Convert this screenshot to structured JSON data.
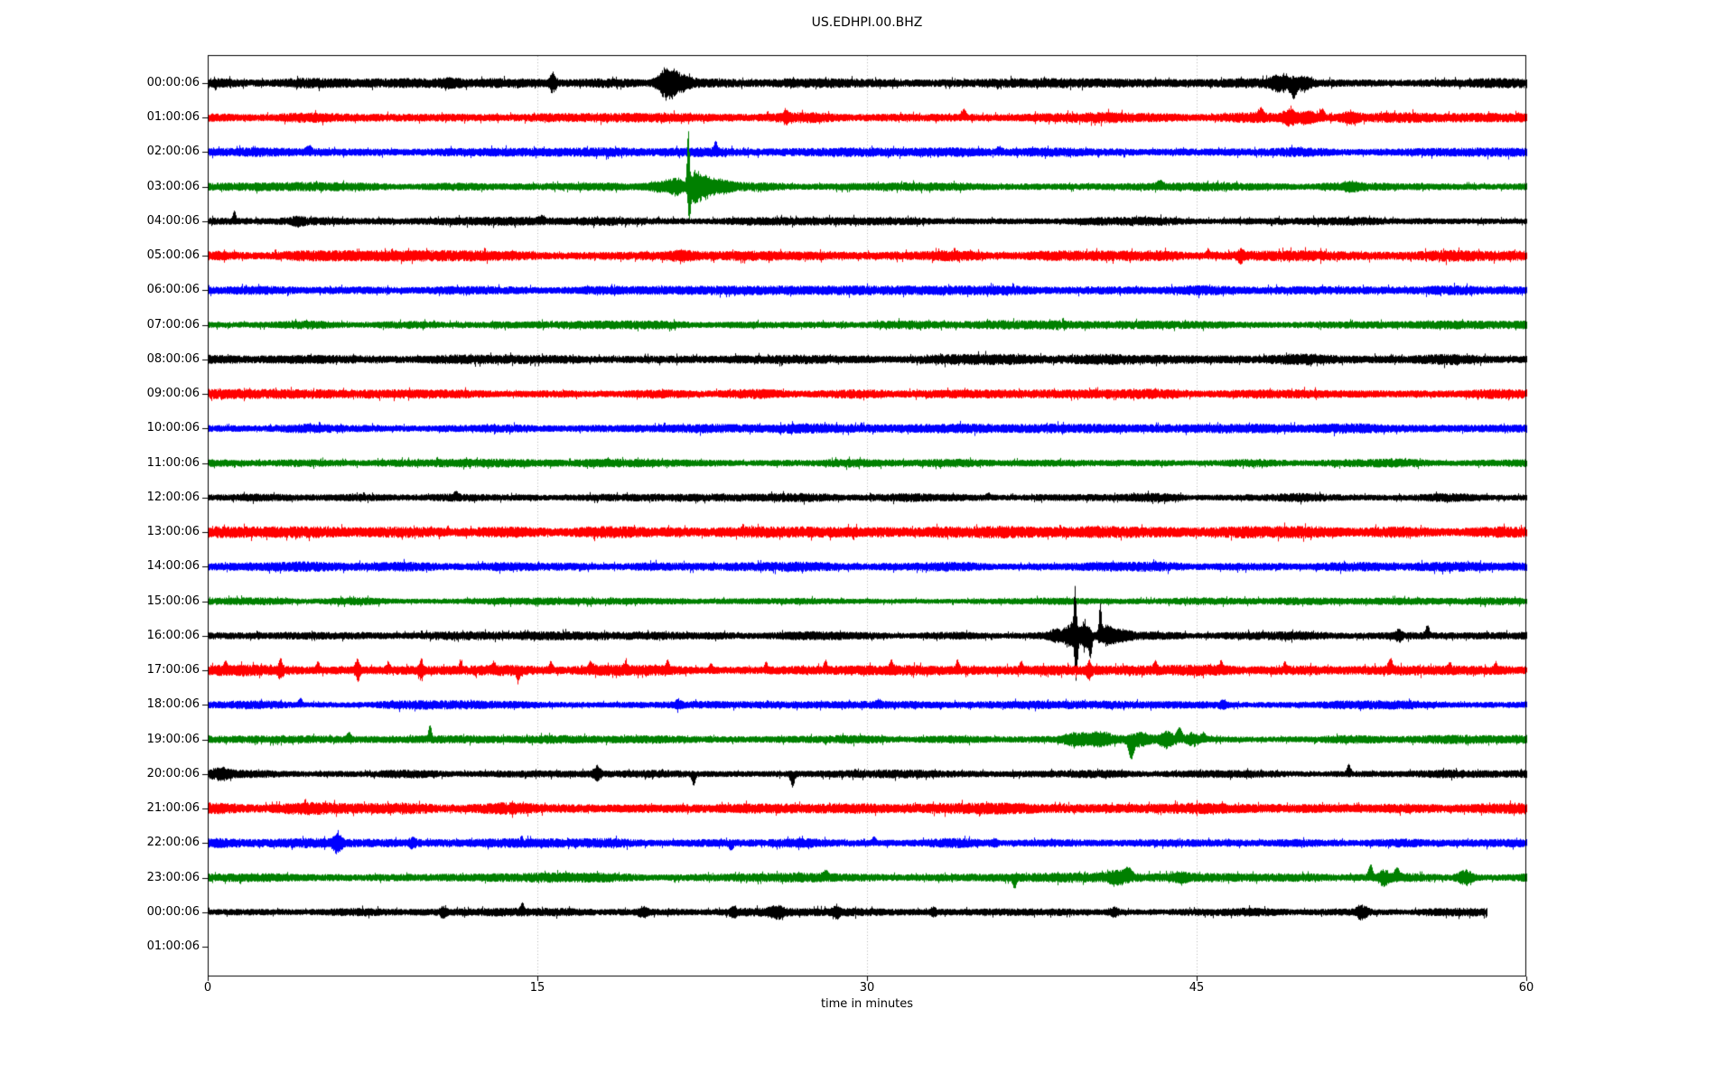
{
  "chart_data": {
    "type": "line",
    "title": "US.EDHPI.00.BHZ",
    "xlabel": "time in minutes",
    "xlim": [
      0,
      60
    ],
    "x_ticks": [
      0,
      15,
      30,
      45,
      60
    ],
    "grid_minutes": [
      15,
      30,
      45
    ],
    "grid_color": "#b0b0b0",
    "frame_color": "#000000",
    "color_cycle": [
      "#000000",
      "#ff0000",
      "#0000ff",
      "#008000"
    ],
    "rows": [
      {
        "label": "00:00:06",
        "color": "#000000",
        "start": 0,
        "end": 60,
        "noise": 4.5,
        "ev": [
          [
            11.0,
            3,
            0.3,
            0
          ],
          [
            15.7,
            9,
            0.12,
            0
          ],
          [
            20.9,
            12,
            0.3,
            0
          ],
          [
            21.3,
            7,
            0.5,
            0
          ],
          [
            48.9,
            7,
            0.4,
            0
          ],
          [
            49.4,
            11,
            0.1,
            -1
          ],
          [
            49.9,
            6,
            0.2,
            0
          ]
        ]
      },
      {
        "label": "01:00:06",
        "color": "#ff0000",
        "start": 0,
        "end": 60,
        "noise": 5.0,
        "ev": [
          [
            26.3,
            4,
            0.1,
            0
          ],
          [
            34.4,
            6,
            0.07,
            1
          ],
          [
            47.9,
            6,
            0.1,
            1
          ],
          [
            49.2,
            8,
            0.2,
            0
          ],
          [
            50.0,
            5,
            0.3,
            0
          ],
          [
            50.7,
            6,
            0.08,
            1
          ],
          [
            52.0,
            4,
            0.3,
            0
          ]
        ]
      },
      {
        "label": "02:00:06",
        "color": "#0000ff",
        "start": 0,
        "end": 60,
        "noise": 4.5,
        "ev": [
          [
            4.6,
            4,
            0.1,
            1
          ],
          [
            23.1,
            8,
            0.07,
            1
          ],
          [
            36.0,
            3,
            0.1,
            1
          ]
        ]
      },
      {
        "label": "03:00:06",
        "color": "#008000",
        "start": 0,
        "end": 60,
        "noise": 4.0,
        "ev": [
          [
            20.6,
            4,
            0.5,
            0
          ],
          [
            21.3,
            7,
            0.25,
            0
          ],
          [
            21.85,
            56,
            0.05,
            1
          ],
          [
            21.9,
            30,
            0.06,
            -1
          ],
          [
            22.15,
            13,
            0.15,
            0
          ],
          [
            22.5,
            8,
            0.3,
            0
          ],
          [
            23.2,
            5,
            0.5,
            0
          ],
          [
            43.3,
            4,
            0.12,
            1
          ],
          [
            52.0,
            3,
            0.2,
            0
          ]
        ]
      },
      {
        "label": "04:00:06",
        "color": "#000000",
        "start": 0,
        "end": 60,
        "noise": 4.0,
        "ev": [
          [
            1.2,
            8,
            0.06,
            1
          ],
          [
            4.1,
            3,
            0.2,
            0
          ],
          [
            15.2,
            3,
            0.12,
            1
          ]
        ]
      },
      {
        "label": "05:00:06",
        "color": "#ff0000",
        "start": 0,
        "end": 60,
        "noise": 5.0,
        "ev": [
          [
            21.5,
            3,
            0.4,
            0
          ],
          [
            45.5,
            5,
            0.06,
            1
          ],
          [
            47.0,
            6,
            0.1,
            0
          ]
        ]
      },
      {
        "label": "06:00:06",
        "color": "#0000ff",
        "start": 0,
        "end": 60,
        "noise": 4.5,
        "ev": []
      },
      {
        "label": "07:00:06",
        "color": "#008000",
        "start": 0,
        "end": 60,
        "noise": 4.0,
        "ev": []
      },
      {
        "label": "08:00:06",
        "color": "#000000",
        "start": 0,
        "end": 60,
        "noise": 5.0,
        "ev": []
      },
      {
        "label": "09:00:06",
        "color": "#ff0000",
        "start": 0,
        "end": 60,
        "noise": 4.5,
        "ev": []
      },
      {
        "label": "10:00:06",
        "color": "#0000ff",
        "start": 0,
        "end": 60,
        "noise": 4.5,
        "ev": []
      },
      {
        "label": "11:00:06",
        "color": "#008000",
        "start": 0,
        "end": 60,
        "noise": 4.0,
        "ev": []
      },
      {
        "label": "12:00:06",
        "color": "#000000",
        "start": 0,
        "end": 60,
        "noise": 4.0,
        "ev": [
          [
            11.3,
            4,
            0.08,
            1
          ],
          [
            35.5,
            3,
            0.08,
            1
          ]
        ]
      },
      {
        "label": "13:00:06",
        "color": "#ff0000",
        "start": 0,
        "end": 60,
        "noise": 5.5,
        "ev": []
      },
      {
        "label": "14:00:06",
        "color": "#0000ff",
        "start": 0,
        "end": 60,
        "noise": 4.5,
        "ev": []
      },
      {
        "label": "15:00:06",
        "color": "#008000",
        "start": 0,
        "end": 60,
        "noise": 3.5,
        "ev": []
      },
      {
        "label": "16:00:06",
        "color": "#000000",
        "start": 0,
        "end": 60,
        "noise": 4.0,
        "ev": [
          [
            38.7,
            5,
            0.3,
            0
          ],
          [
            39.3,
            13,
            0.2,
            0
          ],
          [
            39.45,
            44,
            0.05,
            1
          ],
          [
            39.5,
            38,
            0.06,
            -1
          ],
          [
            39.9,
            15,
            0.15,
            0
          ],
          [
            40.15,
            19,
            0.06,
            -1
          ],
          [
            40.6,
            30,
            0.05,
            1
          ],
          [
            40.9,
            8,
            0.2,
            0
          ],
          [
            41.5,
            4,
            0.4,
            0
          ],
          [
            54.2,
            5,
            0.1,
            0
          ],
          [
            55.5,
            8,
            0.07,
            1
          ]
        ]
      },
      {
        "label": "17:00:06",
        "color": "#ff0000",
        "start": 0,
        "end": 60,
        "noise": 5.0,
        "ev": [
          [
            0.8,
            5,
            0.06,
            1
          ],
          [
            3.3,
            9,
            0.08,
            0
          ],
          [
            5.0,
            6,
            0.06,
            1
          ],
          [
            6.8,
            11,
            0.08,
            0
          ],
          [
            8.2,
            6,
            0.06,
            1
          ],
          [
            9.7,
            11,
            0.07,
            0
          ],
          [
            11.5,
            6,
            0.06,
            1
          ],
          [
            13.0,
            5,
            0.06,
            1
          ],
          [
            14.1,
            7,
            0.07,
            -1
          ],
          [
            15.6,
            7,
            0.06,
            1
          ],
          [
            17.4,
            6,
            0.06,
            1
          ],
          [
            19.0,
            5,
            0.06,
            1
          ],
          [
            20.9,
            7,
            0.06,
            1
          ],
          [
            22.9,
            5,
            0.06,
            1
          ],
          [
            25.4,
            6,
            0.06,
            1
          ],
          [
            28.1,
            7,
            0.06,
            1
          ],
          [
            31.1,
            8,
            0.06,
            1
          ],
          [
            34.1,
            8,
            0.06,
            1
          ],
          [
            37.0,
            6,
            0.06,
            1
          ],
          [
            40.1,
            9,
            0.08,
            0
          ],
          [
            43.1,
            7,
            0.06,
            1
          ],
          [
            46.1,
            6,
            0.06,
            1
          ],
          [
            49.0,
            5,
            0.06,
            1
          ],
          [
            53.8,
            9,
            0.08,
            1
          ],
          [
            56.5,
            5,
            0.06,
            1
          ],
          [
            58.6,
            6,
            0.06,
            1
          ]
        ]
      },
      {
        "label": "18:00:06",
        "color": "#0000ff",
        "start": 0,
        "end": 60,
        "noise": 4.0,
        "ev": [
          [
            4.2,
            5,
            0.08,
            1
          ],
          [
            21.4,
            4,
            0.1,
            0
          ],
          [
            30.5,
            3,
            0.1,
            1
          ],
          [
            46.2,
            3,
            0.12,
            0
          ]
        ]
      },
      {
        "label": "19:00:06",
        "color": "#008000",
        "start": 0,
        "end": 60,
        "noise": 4.0,
        "ev": [
          [
            6.4,
            5,
            0.08,
            1
          ],
          [
            10.1,
            12,
            0.06,
            1
          ],
          [
            39.5,
            5,
            0.4,
            0
          ],
          [
            40.6,
            5,
            0.35,
            0
          ],
          [
            42.0,
            16,
            0.1,
            -1
          ],
          [
            42.4,
            6,
            0.3,
            0
          ],
          [
            43.6,
            7,
            0.25,
            0
          ],
          [
            44.2,
            10,
            0.1,
            1
          ],
          [
            44.8,
            6,
            0.2,
            0
          ],
          [
            45.3,
            5,
            0.1,
            1
          ]
        ]
      },
      {
        "label": "20:00:06",
        "color": "#000000",
        "start": 0,
        "end": 60,
        "noise": 4.0,
        "ev": [
          [
            0.6,
            4,
            0.3,
            0
          ],
          [
            17.7,
            7,
            0.12,
            0
          ],
          [
            22.1,
            10,
            0.07,
            -1
          ],
          [
            26.6,
            12,
            0.07,
            -1
          ],
          [
            51.9,
            8,
            0.07,
            1
          ]
        ]
      },
      {
        "label": "21:00:06",
        "color": "#ff0000",
        "start": 0,
        "end": 60,
        "noise": 5.5,
        "ev": []
      },
      {
        "label": "22:00:06",
        "color": "#0000ff",
        "start": 0,
        "end": 60,
        "noise": 4.5,
        "ev": [
          [
            5.9,
            10,
            0.15,
            0
          ],
          [
            9.3,
            4,
            0.1,
            0
          ],
          [
            23.8,
            5,
            0.07,
            -1
          ],
          [
            30.3,
            4,
            0.07,
            1
          ],
          [
            35.8,
            4,
            0.1,
            0
          ]
        ]
      },
      {
        "label": "23:00:06",
        "color": "#008000",
        "start": 0,
        "end": 60,
        "noise": 4.5,
        "ev": [
          [
            28.1,
            4,
            0.1,
            1
          ],
          [
            36.7,
            9,
            0.07,
            -1
          ],
          [
            41.4,
            5,
            0.3,
            0
          ],
          [
            41.9,
            6,
            0.15,
            1
          ],
          [
            44.3,
            4,
            0.2,
            0
          ],
          [
            52.9,
            11,
            0.08,
            1
          ],
          [
            53.5,
            7,
            0.15,
            0
          ],
          [
            54.1,
            6,
            0.1,
            1
          ],
          [
            57.2,
            7,
            0.25,
            0
          ]
        ]
      },
      {
        "label": "00:00:06",
        "color": "#000000",
        "start": 0,
        "end": 58.2,
        "noise": 3.8,
        "ev": [
          [
            10.7,
            5,
            0.1,
            0
          ],
          [
            14.3,
            7,
            0.07,
            1
          ],
          [
            19.8,
            4,
            0.15,
            0
          ],
          [
            23.9,
            5,
            0.1,
            0
          ],
          [
            25.9,
            5,
            0.25,
            0
          ],
          [
            28.6,
            6,
            0.1,
            0
          ],
          [
            33.0,
            4,
            0.1,
            0
          ],
          [
            41.2,
            4,
            0.15,
            0
          ],
          [
            52.5,
            6,
            0.2,
            0
          ]
        ]
      },
      {
        "label": "01:00:06",
        "color": "#000000",
        "start": 0,
        "end": 0,
        "noise": 0,
        "ev": []
      }
    ]
  }
}
